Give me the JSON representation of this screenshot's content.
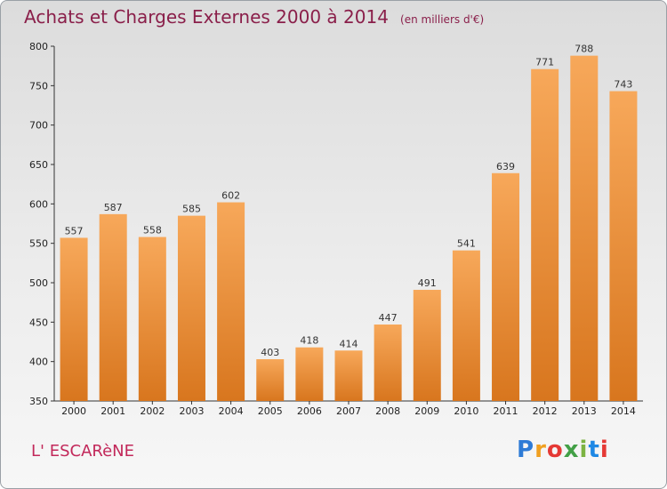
{
  "chart_data": {
    "type": "bar",
    "title": "Achats et Charges Externes 2000 à 2014",
    "subtitle": "(en milliers d'€)",
    "categories": [
      "2000",
      "2001",
      "2002",
      "2003",
      "2004",
      "2005",
      "2006",
      "2007",
      "2008",
      "2009",
      "2010",
      "2011",
      "2012",
      "2013",
      "2014"
    ],
    "values": [
      557,
      587,
      558,
      585,
      602,
      403,
      418,
      414,
      447,
      491,
      541,
      639,
      771,
      788,
      743
    ],
    "ylim": [
      350,
      800
    ],
    "yticks": [
      350,
      400,
      450,
      500,
      550,
      600,
      650,
      700,
      750,
      800
    ],
    "grid": false,
    "bar_color_top": "#f7a85a",
    "bar_color_bottom": "#d8761e"
  },
  "footer": {
    "commune": "L' ESCARèNE",
    "logo_letters": [
      "P",
      "r",
      "o",
      "x",
      "i",
      "t",
      "i"
    ],
    "logo_colors": [
      "#2e7bd6",
      "#f0a021",
      "#e53935",
      "#43a047",
      "#7cb342",
      "#1e88e5",
      "#e53935"
    ]
  }
}
